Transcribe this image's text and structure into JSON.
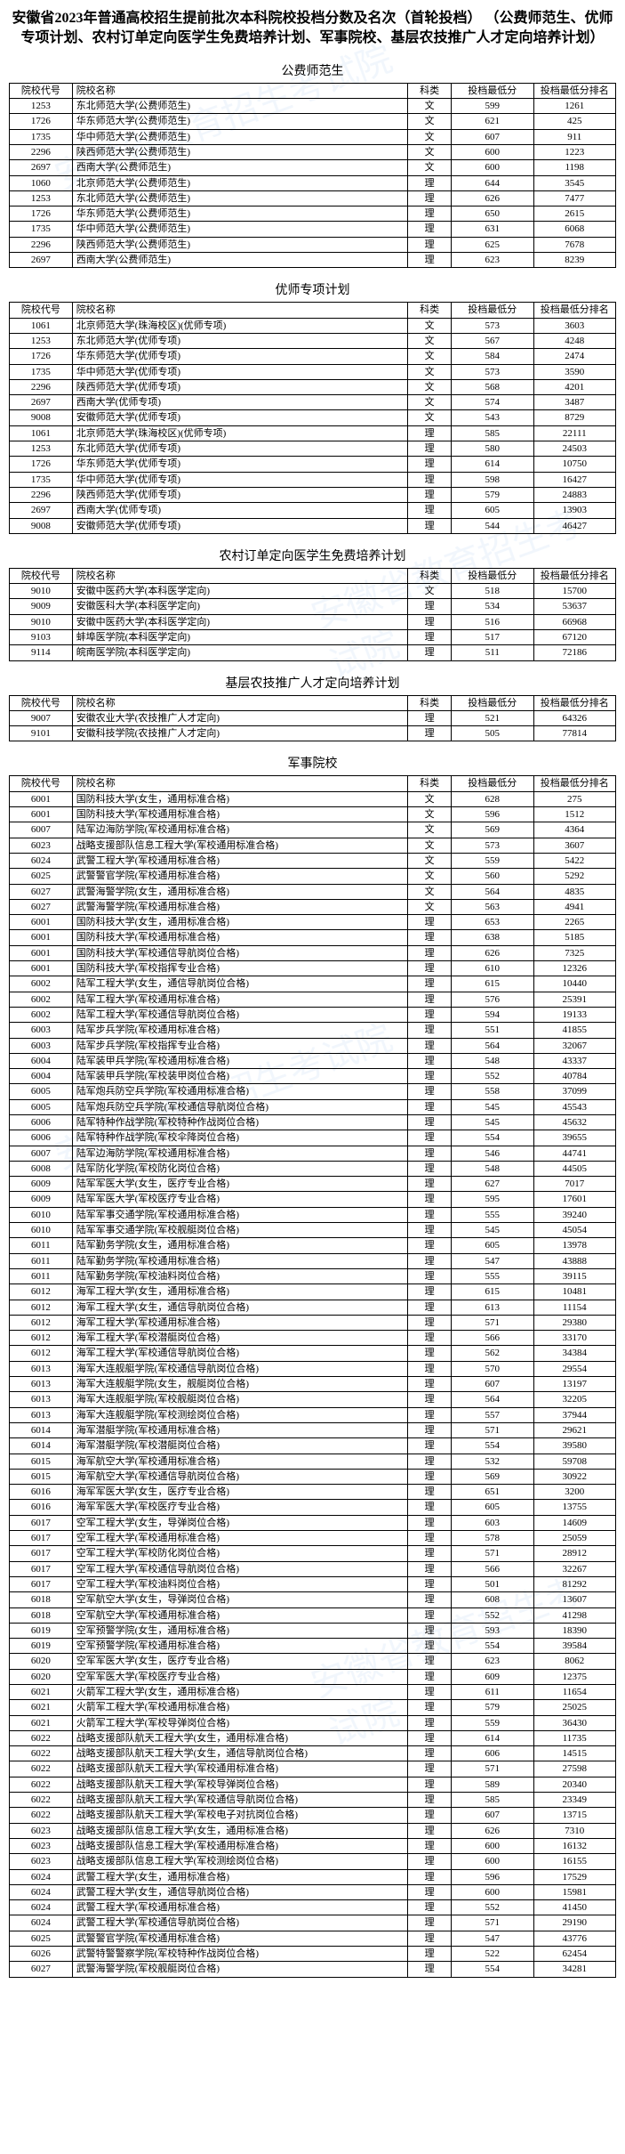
{
  "title": "安徽省2023年普通高校招生提前批次本科院校投档分数及名次（首轮投档）\n（公费师范生、优师专项计划、农村订单定向医学生免费培养计划、军事院校、基层农技推广人才定向培养计划）",
  "headers": {
    "code": "院校代号",
    "name": "院校名称",
    "subj": "科类",
    "score": "投档最低分",
    "rank": "投档最低分排名"
  },
  "sections": [
    {
      "title": "公费师范生",
      "rows": [
        [
          "1253",
          "东北师范大学(公费师范生)",
          "文",
          "599",
          "1261"
        ],
        [
          "1726",
          "华东师范大学(公费师范生)",
          "文",
          "621",
          "425"
        ],
        [
          "1735",
          "华中师范大学(公费师范生)",
          "文",
          "607",
          "911"
        ],
        [
          "2296",
          "陕西师范大学(公费师范生)",
          "文",
          "600",
          "1223"
        ],
        [
          "2697",
          "西南大学(公费师范生)",
          "文",
          "600",
          "1198"
        ],
        [
          "1060",
          "北京师范大学(公费师范生)",
          "理",
          "644",
          "3545"
        ],
        [
          "1253",
          "东北师范大学(公费师范生)",
          "理",
          "626",
          "7477"
        ],
        [
          "1726",
          "华东师范大学(公费师范生)",
          "理",
          "650",
          "2615"
        ],
        [
          "1735",
          "华中师范大学(公费师范生)",
          "理",
          "631",
          "6068"
        ],
        [
          "2296",
          "陕西师范大学(公费师范生)",
          "理",
          "625",
          "7678"
        ],
        [
          "2697",
          "西南大学(公费师范生)",
          "理",
          "623",
          "8239"
        ]
      ]
    },
    {
      "title": "优师专项计划",
      "rows": [
        [
          "1061",
          "北京师范大学(珠海校区)(优师专项)",
          "文",
          "573",
          "3603"
        ],
        [
          "1253",
          "东北师范大学(优师专项)",
          "文",
          "567",
          "4248"
        ],
        [
          "1726",
          "华东师范大学(优师专项)",
          "文",
          "584",
          "2474"
        ],
        [
          "1735",
          "华中师范大学(优师专项)",
          "文",
          "573",
          "3590"
        ],
        [
          "2296",
          "陕西师范大学(优师专项)",
          "文",
          "568",
          "4201"
        ],
        [
          "2697",
          "西南大学(优师专项)",
          "文",
          "574",
          "3487"
        ],
        [
          "9008",
          "安徽师范大学(优师专项)",
          "文",
          "543",
          "8729"
        ],
        [
          "1061",
          "北京师范大学(珠海校区)(优师专项)",
          "理",
          "585",
          "22111"
        ],
        [
          "1253",
          "东北师范大学(优师专项)",
          "理",
          "580",
          "24503"
        ],
        [
          "1726",
          "华东师范大学(优师专项)",
          "理",
          "614",
          "10750"
        ],
        [
          "1735",
          "华中师范大学(优师专项)",
          "理",
          "598",
          "16427"
        ],
        [
          "2296",
          "陕西师范大学(优师专项)",
          "理",
          "579",
          "24883"
        ],
        [
          "2697",
          "西南大学(优师专项)",
          "理",
          "605",
          "13903"
        ],
        [
          "9008",
          "安徽师范大学(优师专项)",
          "理",
          "544",
          "46427"
        ]
      ]
    },
    {
      "title": "农村订单定向医学生免费培养计划",
      "rows": [
        [
          "9010",
          "安徽中医药大学(本科医学定向)",
          "文",
          "518",
          "15700"
        ],
        [
          "9009",
          "安徽医科大学(本科医学定向)",
          "理",
          "534",
          "53637"
        ],
        [
          "9010",
          "安徽中医药大学(本科医学定向)",
          "理",
          "516",
          "66968"
        ],
        [
          "9103",
          "蚌埠医学院(本科医学定向)",
          "理",
          "517",
          "67120"
        ],
        [
          "9114",
          "皖南医学院(本科医学定向)",
          "理",
          "511",
          "72186"
        ]
      ]
    },
    {
      "title": "基层农技推广人才定向培养计划",
      "rows": [
        [
          "9007",
          "安徽农业大学(农技推广人才定向)",
          "理",
          "521",
          "64326"
        ],
        [
          "9101",
          "安徽科技学院(农技推广人才定向)",
          "理",
          "505",
          "77814"
        ]
      ]
    },
    {
      "title": "军事院校",
      "rows": [
        [
          "6001",
          "国防科技大学(女生，通用标准合格)",
          "文",
          "628",
          "275"
        ],
        [
          "6001",
          "国防科技大学(军校通用标准合格)",
          "文",
          "596",
          "1512"
        ],
        [
          "6007",
          "陆军边海防学院(军校通用标准合格)",
          "文",
          "569",
          "4364"
        ],
        [
          "6023",
          "战略支援部队信息工程大学(军校通用标准合格)",
          "文",
          "573",
          "3607"
        ],
        [
          "6024",
          "武警工程大学(军校通用标准合格)",
          "文",
          "559",
          "5422"
        ],
        [
          "6025",
          "武警警官学院(军校通用标准合格)",
          "文",
          "560",
          "5292"
        ],
        [
          "6027",
          "武警海警学院(女生，通用标准合格)",
          "文",
          "564",
          "4835"
        ],
        [
          "6027",
          "武警海警学院(军校通用标准合格)",
          "文",
          "563",
          "4941"
        ],
        [
          "6001",
          "国防科技大学(女生，通用标准合格)",
          "理",
          "653",
          "2265"
        ],
        [
          "6001",
          "国防科技大学(军校通用标准合格)",
          "理",
          "638",
          "5185"
        ],
        [
          "6001",
          "国防科技大学(军校通信导航岗位合格)",
          "理",
          "626",
          "7325"
        ],
        [
          "6001",
          "国防科技大学(军校指挥专业合格)",
          "理",
          "610",
          "12326"
        ],
        [
          "6002",
          "陆军工程大学(女生，通信导航岗位合格)",
          "理",
          "615",
          "10440"
        ],
        [
          "6002",
          "陆军工程大学(军校通用标准合格)",
          "理",
          "576",
          "25391"
        ],
        [
          "6002",
          "陆军工程大学(军校通信导航岗位合格)",
          "理",
          "594",
          "19133"
        ],
        [
          "6003",
          "陆军步兵学院(军校通用标准合格)",
          "理",
          "551",
          "41855"
        ],
        [
          "6003",
          "陆军步兵学院(军校指挥专业合格)",
          "理",
          "564",
          "32067"
        ],
        [
          "6004",
          "陆军装甲兵学院(军校通用标准合格)",
          "理",
          "548",
          "43337"
        ],
        [
          "6004",
          "陆军装甲兵学院(军校装甲岗位合格)",
          "理",
          "552",
          "40784"
        ],
        [
          "6005",
          "陆军炮兵防空兵学院(军校通用标准合格)",
          "理",
          "558",
          "37099"
        ],
        [
          "6005",
          "陆军炮兵防空兵学院(军校通信导航岗位合格)",
          "理",
          "545",
          "45543"
        ],
        [
          "6006",
          "陆军特种作战学院(军校特种作战岗位合格)",
          "理",
          "545",
          "45632"
        ],
        [
          "6006",
          "陆军特种作战学院(军校伞降岗位合格)",
          "理",
          "554",
          "39655"
        ],
        [
          "6007",
          "陆军边海防学院(军校通用标准合格)",
          "理",
          "546",
          "44741"
        ],
        [
          "6008",
          "陆军防化学院(军校防化岗位合格)",
          "理",
          "548",
          "44505"
        ],
        [
          "6009",
          "陆军军医大学(女生，医疗专业合格)",
          "理",
          "627",
          "7017"
        ],
        [
          "6009",
          "陆军军医大学(军校医疗专业合格)",
          "理",
          "595",
          "17601"
        ],
        [
          "6010",
          "陆军军事交通学院(军校通用标准合格)",
          "理",
          "555",
          "39240"
        ],
        [
          "6010",
          "陆军军事交通学院(军校舰艇岗位合格)",
          "理",
          "545",
          "45054"
        ],
        [
          "6011",
          "陆军勤务学院(女生，通用标准合格)",
          "理",
          "605",
          "13978"
        ],
        [
          "6011",
          "陆军勤务学院(军校通用标准合格)",
          "理",
          "547",
          "43888"
        ],
        [
          "6011",
          "陆军勤务学院(军校油料岗位合格)",
          "理",
          "555",
          "39115"
        ],
        [
          "6012",
          "海军工程大学(女生，通用标准合格)",
          "理",
          "615",
          "10481"
        ],
        [
          "6012",
          "海军工程大学(女生，通信导航岗位合格)",
          "理",
          "613",
          "11154"
        ],
        [
          "6012",
          "海军工程大学(军校通用标准合格)",
          "理",
          "571",
          "29380"
        ],
        [
          "6012",
          "海军工程大学(军校潜艇岗位合格)",
          "理",
          "566",
          "33170"
        ],
        [
          "6012",
          "海军工程大学(军校通信导航岗位合格)",
          "理",
          "562",
          "34384"
        ],
        [
          "6013",
          "海军大连舰艇学院(军校通信导航岗位合格)",
          "理",
          "570",
          "29554"
        ],
        [
          "6013",
          "海军大连舰艇学院(女生，舰艇岗位合格)",
          "理",
          "607",
          "13197"
        ],
        [
          "6013",
          "海军大连舰艇学院(军校舰艇岗位合格)",
          "理",
          "564",
          "32205"
        ],
        [
          "6013",
          "海军大连舰艇学院(军校测绘岗位合格)",
          "理",
          "557",
          "37944"
        ],
        [
          "6014",
          "海军潜艇学院(军校通用标准合格)",
          "理",
          "571",
          "29621"
        ],
        [
          "6014",
          "海军潜艇学院(军校潜艇岗位合格)",
          "理",
          "554",
          "39580"
        ],
        [
          "6015",
          "海军航空大学(军校通用标准合格)",
          "理",
          "532",
          "59708"
        ],
        [
          "6015",
          "海军航空大学(军校通信导航岗位合格)",
          "理",
          "569",
          "30922"
        ],
        [
          "6016",
          "海军军医大学(女生，医疗专业合格)",
          "理",
          "651",
          "3200"
        ],
        [
          "6016",
          "海军军医大学(军校医疗专业合格)",
          "理",
          "605",
          "13755"
        ],
        [
          "6017",
          "空军工程大学(女生，导弹岗位合格)",
          "理",
          "603",
          "14609"
        ],
        [
          "6017",
          "空军工程大学(军校通用标准合格)",
          "理",
          "578",
          "25059"
        ],
        [
          "6017",
          "空军工程大学(军校防化岗位合格)",
          "理",
          "571",
          "28912"
        ],
        [
          "6017",
          "空军工程大学(军校通信导航岗位合格)",
          "理",
          "566",
          "32267"
        ],
        [
          "6017",
          "空军工程大学(军校油料岗位合格)",
          "理",
          "501",
          "81292"
        ],
        [
          "6018",
          "空军航空大学(女生，导弹岗位合格)",
          "理",
          "608",
          "13607"
        ],
        [
          "6018",
          "空军航空大学(军校通用标准合格)",
          "理",
          "552",
          "41298"
        ],
        [
          "6019",
          "空军预警学院(女生，通用标准合格)",
          "理",
          "593",
          "18390"
        ],
        [
          "6019",
          "空军预警学院(军校通用标准合格)",
          "理",
          "554",
          "39584"
        ],
        [
          "6020",
          "空军军医大学(女生，医疗专业合格)",
          "理",
          "623",
          "8062"
        ],
        [
          "6020",
          "空军军医大学(军校医疗专业合格)",
          "理",
          "609",
          "12375"
        ],
        [
          "6021",
          "火箭军工程大学(女生，通用标准合格)",
          "理",
          "611",
          "11654"
        ],
        [
          "6021",
          "火箭军工程大学(军校通用标准合格)",
          "理",
          "579",
          "25025"
        ],
        [
          "6021",
          "火箭军工程大学(军校导弹岗位合格)",
          "理",
          "559",
          "36430"
        ],
        [
          "6022",
          "战略支援部队航天工程大学(女生，通用标准合格)",
          "理",
          "614",
          "11735"
        ],
        [
          "6022",
          "战略支援部队航天工程大学(女生，通信导航岗位合格)",
          "理",
          "606",
          "14515"
        ],
        [
          "6022",
          "战略支援部队航天工程大学(军校通用标准合格)",
          "理",
          "571",
          "27598"
        ],
        [
          "6022",
          "战略支援部队航天工程大学(军校导弹岗位合格)",
          "理",
          "589",
          "20340"
        ],
        [
          "6022",
          "战略支援部队航天工程大学(军校通信导航岗位合格)",
          "理",
          "585",
          "23349"
        ],
        [
          "6022",
          "战略支援部队航天工程大学(军校电子对抗岗位合格)",
          "理",
          "607",
          "13715"
        ],
        [
          "6023",
          "战略支援部队信息工程大学(女生，通用标准合格)",
          "理",
          "626",
          "7310"
        ],
        [
          "6023",
          "战略支援部队信息工程大学(军校通用标准合格)",
          "理",
          "600",
          "16132"
        ],
        [
          "6023",
          "战略支援部队信息工程大学(军校测绘岗位合格)",
          "理",
          "600",
          "16155"
        ],
        [
          "6024",
          "武警工程大学(女生，通用标准合格)",
          "理",
          "596",
          "17529"
        ],
        [
          "6024",
          "武警工程大学(女生，通信导航岗位合格)",
          "理",
          "600",
          "15981"
        ],
        [
          "6024",
          "武警工程大学(军校通用标准合格)",
          "理",
          "552",
          "41450"
        ],
        [
          "6024",
          "武警工程大学(军校通信导航岗位合格)",
          "理",
          "571",
          "29190"
        ],
        [
          "6025",
          "武警警官学院(军校通用标准合格)",
          "理",
          "547",
          "43776"
        ],
        [
          "6026",
          "武警特警警察学院(军校特种作战岗位合格)",
          "理",
          "522",
          "62454"
        ],
        [
          "6027",
          "武警海警学院(军校舰艇岗位合格)",
          "理",
          "554",
          "34281"
        ]
      ]
    }
  ]
}
